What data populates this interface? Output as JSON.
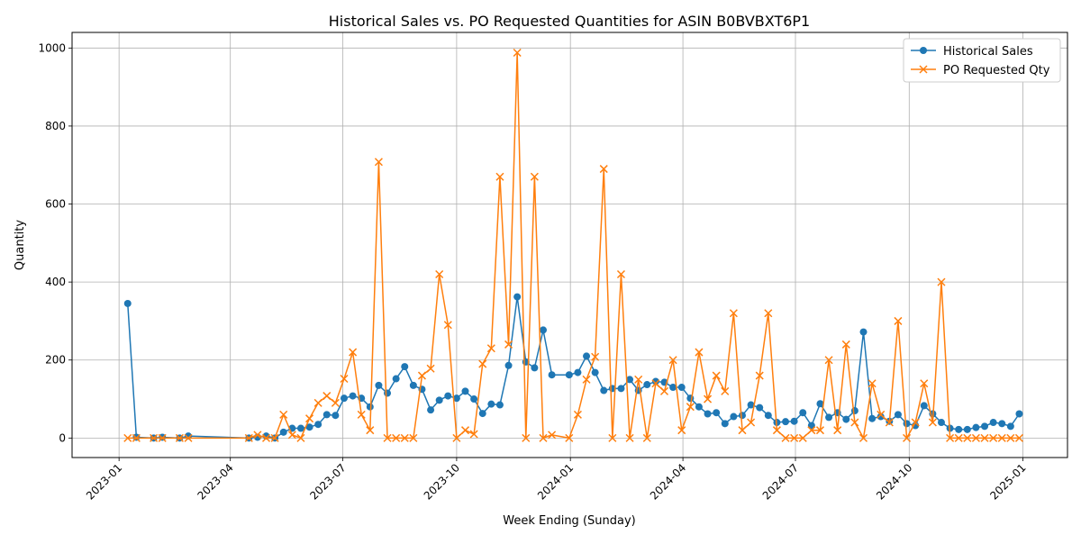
{
  "chart_data": {
    "type": "line",
    "title": "Historical Sales vs. PO Requested Quantities for ASIN B0BVBXT6P1",
    "xlabel": "Week Ending (Sunday)",
    "ylabel": "Quantity",
    "xlim": [
      "2022-11-24",
      "2025-02-06"
    ],
    "ylim": [
      -50,
      1040
    ],
    "x_ticks": [
      "2023-01",
      "2023-04",
      "2023-07",
      "2023-10",
      "2024-01",
      "2024-04",
      "2024-07",
      "2024-10",
      "2025-01"
    ],
    "x_tick_dates": [
      "2023-01-01",
      "2023-04-01",
      "2023-07-01",
      "2023-10-01",
      "2024-01-01",
      "2024-04-01",
      "2024-07-01",
      "2024-10-01",
      "2025-01-01"
    ],
    "y_ticks": [
      0,
      200,
      400,
      600,
      800,
      1000
    ],
    "grid": true,
    "legend_position": "top-right",
    "series": [
      {
        "name": "Historical Sales",
        "color": "#1f77b4",
        "marker": "circle",
        "points": [
          [
            "2023-01-08",
            345
          ],
          [
            "2023-01-15",
            2
          ],
          [
            "2023-01-29",
            0
          ],
          [
            "2023-02-05",
            2
          ],
          [
            "2023-02-19",
            0
          ],
          [
            "2023-02-26",
            5
          ],
          [
            "2023-04-16",
            0
          ],
          [
            "2023-04-23",
            2
          ],
          [
            "2023-04-30",
            5
          ],
          [
            "2023-05-07",
            0
          ],
          [
            "2023-05-14",
            15
          ],
          [
            "2023-05-21",
            25
          ],
          [
            "2023-05-28",
            25
          ],
          [
            "2023-06-04",
            28
          ],
          [
            "2023-06-11",
            35
          ],
          [
            "2023-06-18",
            60
          ],
          [
            "2023-06-25",
            58
          ],
          [
            "2023-07-02",
            102
          ],
          [
            "2023-07-09",
            108
          ],
          [
            "2023-07-16",
            102
          ],
          [
            "2023-07-23",
            80
          ],
          [
            "2023-07-30",
            135
          ],
          [
            "2023-08-06",
            115
          ],
          [
            "2023-08-13",
            152
          ],
          [
            "2023-08-20",
            183
          ],
          [
            "2023-08-27",
            135
          ],
          [
            "2023-09-03",
            125
          ],
          [
            "2023-09-10",
            72
          ],
          [
            "2023-09-17",
            97
          ],
          [
            "2023-09-24",
            108
          ],
          [
            "2023-10-01",
            102
          ],
          [
            "2023-10-08",
            120
          ],
          [
            "2023-10-15",
            100
          ],
          [
            "2023-10-22",
            63
          ],
          [
            "2023-10-29",
            87
          ],
          [
            "2023-11-05",
            85
          ],
          [
            "2023-11-12",
            186
          ],
          [
            "2023-11-19",
            362
          ],
          [
            "2023-11-26",
            195
          ],
          [
            "2023-12-03",
            180
          ],
          [
            "2023-12-10",
            277
          ],
          [
            "2023-12-17",
            162
          ],
          [
            "2023-12-31",
            162
          ],
          [
            "2024-01-07",
            168
          ],
          [
            "2024-01-14",
            210
          ],
          [
            "2024-01-21",
            168
          ],
          [
            "2024-01-28",
            122
          ],
          [
            "2024-02-04",
            127
          ],
          [
            "2024-02-11",
            127
          ],
          [
            "2024-02-18",
            150
          ],
          [
            "2024-02-25",
            122
          ],
          [
            "2024-03-03",
            137
          ],
          [
            "2024-03-10",
            145
          ],
          [
            "2024-03-17",
            143
          ],
          [
            "2024-03-24",
            130
          ],
          [
            "2024-03-31",
            130
          ],
          [
            "2024-04-07",
            102
          ],
          [
            "2024-04-14",
            80
          ],
          [
            "2024-04-21",
            62
          ],
          [
            "2024-04-28",
            65
          ],
          [
            "2024-05-05",
            37
          ],
          [
            "2024-05-12",
            55
          ],
          [
            "2024-05-19",
            58
          ],
          [
            "2024-05-26",
            85
          ],
          [
            "2024-06-02",
            78
          ],
          [
            "2024-06-09",
            58
          ],
          [
            "2024-06-16",
            40
          ],
          [
            "2024-06-23",
            42
          ],
          [
            "2024-06-30",
            43
          ],
          [
            "2024-07-07",
            65
          ],
          [
            "2024-07-14",
            32
          ],
          [
            "2024-07-21",
            88
          ],
          [
            "2024-07-28",
            53
          ],
          [
            "2024-08-04",
            65
          ],
          [
            "2024-08-11",
            48
          ],
          [
            "2024-08-18",
            70
          ],
          [
            "2024-08-25",
            272
          ],
          [
            "2024-09-01",
            50
          ],
          [
            "2024-09-08",
            55
          ],
          [
            "2024-09-15",
            43
          ],
          [
            "2024-09-22",
            60
          ],
          [
            "2024-09-29",
            37
          ],
          [
            "2024-10-06",
            32
          ],
          [
            "2024-10-13",
            83
          ],
          [
            "2024-10-20",
            62
          ],
          [
            "2024-10-27",
            40
          ],
          [
            "2024-11-03",
            25
          ],
          [
            "2024-11-10",
            22
          ],
          [
            "2024-11-17",
            22
          ],
          [
            "2024-11-24",
            27
          ],
          [
            "2024-12-01",
            30
          ],
          [
            "2024-12-08",
            40
          ],
          [
            "2024-12-15",
            37
          ],
          [
            "2024-12-22",
            30
          ],
          [
            "2024-12-29",
            62
          ]
        ]
      },
      {
        "name": "PO Requested Qty",
        "color": "#ff7f0e",
        "marker": "x",
        "points": [
          [
            "2023-01-08",
            0
          ],
          [
            "2023-01-15",
            0
          ],
          [
            "2023-01-29",
            0
          ],
          [
            "2023-02-05",
            0
          ],
          [
            "2023-02-19",
            0
          ],
          [
            "2023-02-26",
            0
          ],
          [
            "2023-04-16",
            0
          ],
          [
            "2023-04-23",
            8
          ],
          [
            "2023-04-30",
            0
          ],
          [
            "2023-05-07",
            0
          ],
          [
            "2023-05-14",
            60
          ],
          [
            "2023-05-21",
            8
          ],
          [
            "2023-05-28",
            0
          ],
          [
            "2023-06-04",
            50
          ],
          [
            "2023-06-11",
            90
          ],
          [
            "2023-06-18",
            108
          ],
          [
            "2023-06-25",
            90
          ],
          [
            "2023-07-02",
            152
          ],
          [
            "2023-07-09",
            220
          ],
          [
            "2023-07-16",
            60
          ],
          [
            "2023-07-23",
            20
          ],
          [
            "2023-07-30",
            708
          ],
          [
            "2023-08-06",
            0
          ],
          [
            "2023-08-13",
            0
          ],
          [
            "2023-08-20",
            0
          ],
          [
            "2023-08-27",
            0
          ],
          [
            "2023-09-03",
            160
          ],
          [
            "2023-09-10",
            178
          ],
          [
            "2023-09-17",
            420
          ],
          [
            "2023-09-24",
            290
          ],
          [
            "2023-10-01",
            0
          ],
          [
            "2023-10-08",
            20
          ],
          [
            "2023-10-15",
            10
          ],
          [
            "2023-10-22",
            190
          ],
          [
            "2023-10-29",
            230
          ],
          [
            "2023-11-05",
            670
          ],
          [
            "2023-11-12",
            240
          ],
          [
            "2023-11-19",
            988
          ],
          [
            "2023-11-26",
            0
          ],
          [
            "2023-12-03",
            670
          ],
          [
            "2023-12-10",
            0
          ],
          [
            "2023-12-17",
            8
          ],
          [
            "2023-12-31",
            0
          ],
          [
            "2024-01-07",
            60
          ],
          [
            "2024-01-14",
            150
          ],
          [
            "2024-01-21",
            208
          ],
          [
            "2024-01-28",
            690
          ],
          [
            "2024-02-04",
            0
          ],
          [
            "2024-02-11",
            420
          ],
          [
            "2024-02-18",
            0
          ],
          [
            "2024-02-25",
            150
          ],
          [
            "2024-03-03",
            0
          ],
          [
            "2024-03-10",
            140
          ],
          [
            "2024-03-17",
            120
          ],
          [
            "2024-03-24",
            200
          ],
          [
            "2024-03-31",
            20
          ],
          [
            "2024-04-07",
            80
          ],
          [
            "2024-04-14",
            220
          ],
          [
            "2024-04-21",
            100
          ],
          [
            "2024-04-28",
            160
          ],
          [
            "2024-05-05",
            120
          ],
          [
            "2024-05-12",
            320
          ],
          [
            "2024-05-19",
            20
          ],
          [
            "2024-05-26",
            40
          ],
          [
            "2024-06-02",
            160
          ],
          [
            "2024-06-09",
            320
          ],
          [
            "2024-06-16",
            20
          ],
          [
            "2024-06-23",
            0
          ],
          [
            "2024-06-30",
            0
          ],
          [
            "2024-07-07",
            0
          ],
          [
            "2024-07-14",
            20
          ],
          [
            "2024-07-21",
            20
          ],
          [
            "2024-07-28",
            200
          ],
          [
            "2024-08-04",
            20
          ],
          [
            "2024-08-11",
            240
          ],
          [
            "2024-08-18",
            40
          ],
          [
            "2024-08-25",
            0
          ],
          [
            "2024-09-01",
            140
          ],
          [
            "2024-09-08",
            60
          ],
          [
            "2024-09-15",
            40
          ],
          [
            "2024-09-22",
            300
          ],
          [
            "2024-09-29",
            0
          ],
          [
            "2024-10-06",
            40
          ],
          [
            "2024-10-13",
            140
          ],
          [
            "2024-10-20",
            40
          ],
          [
            "2024-10-27",
            400
          ],
          [
            "2024-11-03",
            0
          ],
          [
            "2024-11-10",
            0
          ],
          [
            "2024-11-17",
            0
          ],
          [
            "2024-11-24",
            0
          ],
          [
            "2024-12-01",
            0
          ],
          [
            "2024-12-08",
            0
          ],
          [
            "2024-12-15",
            0
          ],
          [
            "2024-12-22",
            0
          ],
          [
            "2024-12-29",
            0
          ]
        ]
      }
    ]
  }
}
